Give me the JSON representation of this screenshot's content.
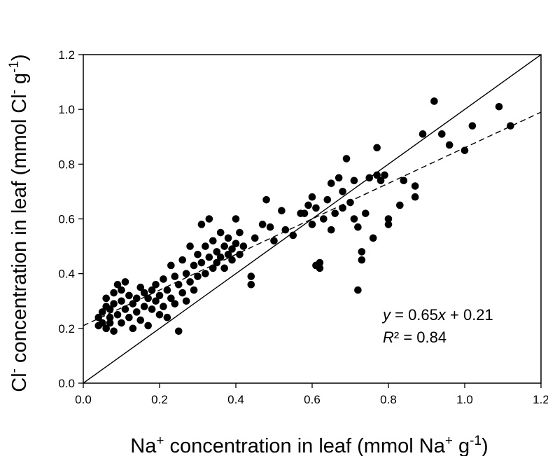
{
  "chart_data": {
    "type": "scatter",
    "title": "",
    "xlabel": {
      "parts": [
        {
          "text": "Na"
        },
        {
          "text": "+",
          "sup": true
        },
        {
          "text": " concentration in leaf (mmol Na"
        },
        {
          "text": "+",
          "sup": true
        },
        {
          "text": " g"
        },
        {
          "text": "-1",
          "sup": true
        },
        {
          "text": ")"
        }
      ]
    },
    "ylabel": {
      "parts": [
        {
          "text": "Cl"
        },
        {
          "text": "-",
          "sup": true
        },
        {
          "text": " concentration in leaf (mmol Cl"
        },
        {
          "text": "-",
          "sup": true
        },
        {
          "text": " g"
        },
        {
          "text": "-1",
          "sup": true
        },
        {
          "text": ")"
        }
      ]
    },
    "xlim": [
      0,
      1.2
    ],
    "ylim": [
      0,
      1.2
    ],
    "xticks": [
      "0.0",
      "0.2",
      "0.4",
      "0.6",
      "0.8",
      "1.0",
      "1.2"
    ],
    "yticks": [
      "0.0",
      "0.2",
      "0.4",
      "0.6",
      "0.8",
      "1.0",
      "1.2"
    ],
    "grid": false,
    "legend": "none",
    "reference_line": {
      "style": "solid",
      "slope": 1,
      "intercept": 0
    },
    "fit_line": {
      "style": "dashed",
      "slope": 0.65,
      "intercept": 0.21
    },
    "annotation": {
      "equation": "y = 0.65x + 0.21",
      "r2": "R² = 0.84"
    },
    "series": [
      {
        "marker": "filled-circle",
        "color": "#000000",
        "points": [
          [
            0.04,
            0.21
          ],
          [
            0.04,
            0.24
          ],
          [
            0.05,
            0.26
          ],
          [
            0.05,
            0.22
          ],
          [
            0.06,
            0.28
          ],
          [
            0.06,
            0.2
          ],
          [
            0.06,
            0.31
          ],
          [
            0.07,
            0.24
          ],
          [
            0.07,
            0.27
          ],
          [
            0.07,
            0.22
          ],
          [
            0.08,
            0.29
          ],
          [
            0.08,
            0.33
          ],
          [
            0.08,
            0.19
          ],
          [
            0.09,
            0.25
          ],
          [
            0.09,
            0.36
          ],
          [
            0.1,
            0.3
          ],
          [
            0.1,
            0.34
          ],
          [
            0.1,
            0.22
          ],
          [
            0.11,
            0.27
          ],
          [
            0.11,
            0.37
          ],
          [
            0.12,
            0.24
          ],
          [
            0.12,
            0.32
          ],
          [
            0.13,
            0.29
          ],
          [
            0.13,
            0.2
          ],
          [
            0.14,
            0.26
          ],
          [
            0.14,
            0.31
          ],
          [
            0.15,
            0.23
          ],
          [
            0.15,
            0.35
          ],
          [
            0.16,
            0.28
          ],
          [
            0.16,
            0.33
          ],
          [
            0.17,
            0.31
          ],
          [
            0.17,
            0.21
          ],
          [
            0.18,
            0.27
          ],
          [
            0.18,
            0.34
          ],
          [
            0.19,
            0.3
          ],
          [
            0.19,
            0.36
          ],
          [
            0.2,
            0.25
          ],
          [
            0.2,
            0.32
          ],
          [
            0.21,
            0.28
          ],
          [
            0.21,
            0.38
          ],
          [
            0.22,
            0.34
          ],
          [
            0.22,
            0.24
          ],
          [
            0.23,
            0.31
          ],
          [
            0.23,
            0.43
          ],
          [
            0.24,
            0.29
          ],
          [
            0.24,
            0.39
          ],
          [
            0.25,
            0.36
          ],
          [
            0.25,
            0.19
          ],
          [
            0.26,
            0.33
          ],
          [
            0.26,
            0.45
          ],
          [
            0.27,
            0.4
          ],
          [
            0.27,
            0.3
          ],
          [
            0.28,
            0.37
          ],
          [
            0.28,
            0.5
          ],
          [
            0.29,
            0.43
          ],
          [
            0.29,
            0.34
          ],
          [
            0.3,
            0.47
          ],
          [
            0.3,
            0.39
          ],
          [
            0.31,
            0.44
          ],
          [
            0.31,
            0.58
          ],
          [
            0.32,
            0.5
          ],
          [
            0.32,
            0.4
          ],
          [
            0.33,
            0.46
          ],
          [
            0.33,
            0.6
          ],
          [
            0.34,
            0.42
          ],
          [
            0.34,
            0.52
          ],
          [
            0.35,
            0.48
          ],
          [
            0.35,
            0.44
          ],
          [
            0.36,
            0.55
          ],
          [
            0.36,
            0.46
          ],
          [
            0.37,
            0.5
          ],
          [
            0.37,
            0.42
          ],
          [
            0.38,
            0.47
          ],
          [
            0.38,
            0.53
          ],
          [
            0.39,
            0.49
          ],
          [
            0.39,
            0.45
          ],
          [
            0.4,
            0.6
          ],
          [
            0.4,
            0.51
          ],
          [
            0.41,
            0.47
          ],
          [
            0.41,
            0.55
          ],
          [
            0.42,
            0.5
          ],
          [
            0.44,
            0.39
          ],
          [
            0.44,
            0.36
          ],
          [
            0.45,
            0.53
          ],
          [
            0.47,
            0.58
          ],
          [
            0.48,
            0.67
          ],
          [
            0.49,
            0.57
          ],
          [
            0.5,
            0.52
          ],
          [
            0.52,
            0.63
          ],
          [
            0.53,
            0.56
          ],
          [
            0.55,
            0.54
          ],
          [
            0.57,
            0.62
          ],
          [
            0.58,
            0.62
          ],
          [
            0.59,
            0.65
          ],
          [
            0.6,
            0.68
          ],
          [
            0.6,
            0.58
          ],
          [
            0.61,
            0.43
          ],
          [
            0.61,
            0.64
          ],
          [
            0.62,
            0.42
          ],
          [
            0.62,
            0.44
          ],
          [
            0.63,
            0.6
          ],
          [
            0.64,
            0.67
          ],
          [
            0.65,
            0.73
          ],
          [
            0.65,
            0.56
          ],
          [
            0.66,
            0.62
          ],
          [
            0.67,
            0.75
          ],
          [
            0.68,
            0.7
          ],
          [
            0.68,
            0.64
          ],
          [
            0.69,
            0.82
          ],
          [
            0.7,
            0.66
          ],
          [
            0.71,
            0.74
          ],
          [
            0.71,
            0.6
          ],
          [
            0.72,
            0.34
          ],
          [
            0.72,
            0.57
          ],
          [
            0.73,
            0.45
          ],
          [
            0.73,
            0.48
          ],
          [
            0.74,
            0.62
          ],
          [
            0.75,
            0.75
          ],
          [
            0.76,
            0.53
          ],
          [
            0.77,
            0.76
          ],
          [
            0.77,
            0.86
          ],
          [
            0.78,
            0.74
          ],
          [
            0.79,
            0.76
          ],
          [
            0.8,
            0.6
          ],
          [
            0.8,
            0.58
          ],
          [
            0.83,
            0.65
          ],
          [
            0.84,
            0.74
          ],
          [
            0.87,
            0.68
          ],
          [
            0.87,
            0.72
          ],
          [
            0.89,
            0.91
          ],
          [
            0.92,
            1.03
          ],
          [
            0.94,
            0.91
          ],
          [
            0.96,
            0.87
          ],
          [
            1.0,
            0.85
          ],
          [
            1.02,
            0.94
          ],
          [
            1.09,
            1.01
          ],
          [
            1.12,
            0.94
          ]
        ]
      }
    ]
  }
}
